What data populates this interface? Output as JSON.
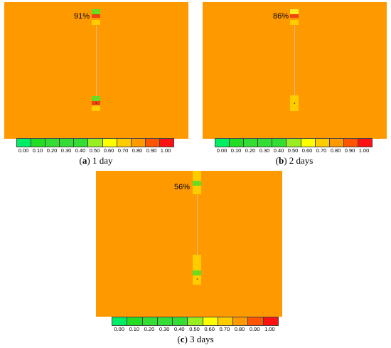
{
  "legend": {
    "ticks": [
      "0.00",
      "0.10",
      "0.20",
      "0.30",
      "0.40",
      "0.50",
      "0.60",
      "0.70",
      "0.80",
      "0.90",
      "1.00"
    ],
    "colors": [
      "#00ee66",
      "#22dd22",
      "#33dd33",
      "#33dd33",
      "#33dd33",
      "#99ee22",
      "#ffff00",
      "#ffcc00",
      "#ff9900",
      "#ff5500",
      "#ff1111"
    ]
  },
  "panels": [
    {
      "percent": "91%",
      "caption_letter": "a",
      "caption_text": "1 day"
    },
    {
      "percent": "86%",
      "caption_letter": "b",
      "caption_text": "2 days"
    },
    {
      "percent": "56%",
      "caption_letter": "c",
      "caption_text": "3 days"
    }
  ]
}
